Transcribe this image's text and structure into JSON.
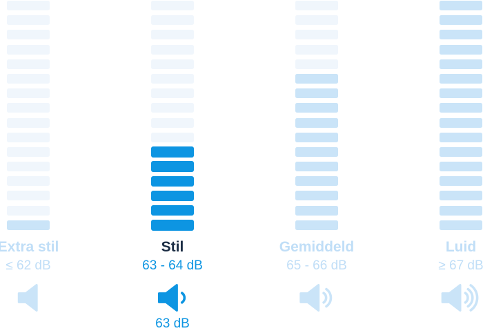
{
  "chart_data": {
    "type": "bar",
    "title": "",
    "categories": [
      "Extra stil",
      "Stil",
      "Gemiddeld",
      "Luid"
    ],
    "ranges": [
      "≤ 62 dB",
      "63 - 64 dB",
      "65 - 66 dB",
      "≥ 67 dB"
    ],
    "segments_total": 16,
    "segments_filled": [
      1,
      6,
      11,
      16
    ],
    "selected_category": "Stil",
    "selected_value": "63 dB",
    "unit": "dB",
    "legend_position": "none",
    "grid": false
  },
  "levels": [
    {
      "title": "Extra stil",
      "range": "≤ 62 dB",
      "filled": 1,
      "selected": false,
      "icon": "speaker-no-wave-icon",
      "waves": 0,
      "value_label": ""
    },
    {
      "title": "Stil",
      "range": "63 - 64 dB",
      "filled": 6,
      "selected": true,
      "icon": "speaker-one-wave-icon",
      "waves": 1,
      "value_label": "63 dB"
    },
    {
      "title": "Gemiddeld",
      "range": "65 - 66 dB",
      "filled": 11,
      "selected": false,
      "icon": "speaker-two-waves-icon",
      "waves": 2,
      "value_label": ""
    },
    {
      "title": "Luid",
      "range": "≥ 67 dB",
      "filled": 16,
      "selected": false,
      "icon": "speaker-three-waves-icon",
      "waves": 3,
      "value_label": ""
    }
  ],
  "colors": {
    "selected_bar": "#0d95e2",
    "filled_bar": "#cae4f8",
    "empty_bar": "#f0f6fc",
    "muted_text": "#c0def7",
    "selected_title": "#1b2d44",
    "background": "#ffffff"
  }
}
